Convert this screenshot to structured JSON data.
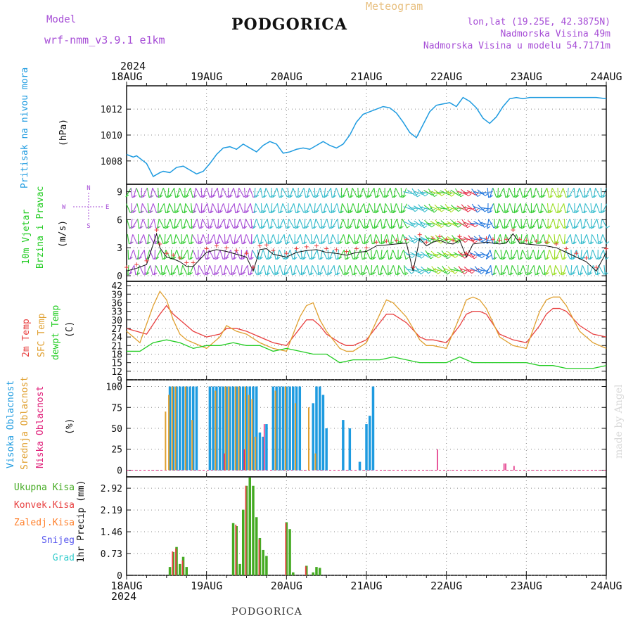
{
  "header": {
    "model_label": "Model",
    "model_name": "wrf-nmm_v3.9.1 e1km",
    "title": "PODGORICA",
    "meteogram": "Meteogram",
    "coords": "lon,lat (19.25E, 42.3875N)",
    "elev": "Nadmorska Visina 49m",
    "elev_model": "Nadmorska Visina u modelu 54.7171m",
    "year_top": "2024",
    "year_bottom": "2024",
    "footer_title": "PODGORICA",
    "credit": "made by Angel"
  },
  "colors": {
    "pressure": "#1e9be0",
    "wind_green": "#33cc33",
    "temp_2m": "#e84040",
    "temp_sfc": "#e0a030",
    "dewpt": "#22cc22",
    "cloud_high": "#1e9be0",
    "cloud_mid": "#e0a030",
    "cloud_low": "#e0207a",
    "precip_total": "#44aa22",
    "precip_conv": "#e84040",
    "precip_strat": "#ff7f2a",
    "snow": "#5555ee",
    "graupel": "#33cccc",
    "wind_dir_purple": "#a64dd6"
  },
  "axes": {
    "date_ticks": [
      "18AUG",
      "19AUG",
      "20AUG",
      "21AUG",
      "22AUG",
      "23AUG",
      "24AUG"
    ],
    "hours_span": 144
  },
  "panels": {
    "pressure": {
      "labels": [
        "Pritisak na nivou mora"
      ],
      "unit": "(hPa)",
      "yticks": [
        "1008",
        "1010",
        "1012"
      ]
    },
    "wind": {
      "labels": [
        "10m Vjetar",
        "Brzina i Pravac"
      ],
      "unit": "(m/s)",
      "yticks": [
        "0",
        "3",
        "6",
        "9"
      ],
      "compass": {
        "n": "N",
        "w": "W",
        "e": "E",
        "s": "S"
      }
    },
    "temp": {
      "labels": [
        "2m Temp",
        "SFC Temp",
        "dewpt Temp"
      ],
      "unit": "(C)",
      "yticks": [
        "9",
        "12",
        "15",
        "18",
        "21",
        "24",
        "27",
        "30",
        "33",
        "36",
        "39",
        "42"
      ]
    },
    "cloud": {
      "labels": [
        "Visoka Oblacnost",
        "Srednja Oblacnost",
        "Niska Oblacnost"
      ],
      "unit": "(%)",
      "yticks": [
        "0",
        "25",
        "50",
        "75",
        "100"
      ]
    },
    "precip": {
      "legend": [
        "Ukupna Kisa",
        "Konvek.Kisa",
        "Zaledj.Kisa",
        "Snijeg",
        "Grad"
      ],
      "unit": "1hr Precip (mm)",
      "yticks": [
        "0",
        "0.73",
        "1.46",
        "2.19",
        "2.92"
      ]
    }
  },
  "chart_data": [
    {
      "type": "line",
      "name": "pressure",
      "x_unit": "hours since 18AUG 00UTC",
      "ylim": [
        1006.2,
        1013.8
      ],
      "series": [
        {
          "name": "Pritisak na nivou mora",
          "x": [
            0,
            2,
            3,
            5,
            6,
            8,
            10,
            11,
            13,
            15,
            17,
            19,
            21,
            23,
            25,
            27,
            29,
            31,
            33,
            35,
            37,
            39,
            41,
            43,
            45,
            47,
            49,
            51,
            53,
            55,
            57,
            59,
            61,
            63,
            65,
            67,
            69,
            71,
            73,
            75,
            77,
            79,
            81,
            83,
            85,
            87,
            89,
            91,
            93,
            95,
            97,
            99,
            101,
            103,
            105,
            107,
            109,
            111,
            113,
            115,
            117,
            119,
            121,
            123,
            125,
            127,
            129,
            131,
            133,
            135,
            137,
            139,
            141,
            144
          ],
          "values": [
            1008.5,
            1008.3,
            1008.4,
            1008.0,
            1007.8,
            1006.8,
            1007.1,
            1007.2,
            1007.1,
            1007.5,
            1007.6,
            1007.3,
            1007.0,
            1007.2,
            1007.8,
            1008.5,
            1009.0,
            1009.1,
            1008.9,
            1009.3,
            1009.0,
            1008.7,
            1009.2,
            1009.5,
            1009.3,
            1008.6,
            1008.7,
            1008.9,
            1009.0,
            1008.9,
            1009.2,
            1009.5,
            1009.2,
            1009.0,
            1009.3,
            1010.0,
            1011.0,
            1011.6,
            1011.8,
            1012.0,
            1012.2,
            1012.1,
            1011.7,
            1011.0,
            1010.2,
            1009.8,
            1010.8,
            1011.8,
            1012.3,
            1012.4,
            1012.5,
            1012.2,
            1012.9,
            1012.6,
            1012.1,
            1011.3,
            1010.9,
            1011.4,
            1012.2,
            1012.8,
            1012.9,
            1012.8,
            1012.9,
            1012.9,
            1012.9,
            1012.9,
            1012.9,
            1012.9,
            1012.9,
            1012.9,
            1012.9,
            1012.9,
            1012.9,
            1012.8
          ]
        }
      ]
    },
    {
      "type": "line",
      "name": "wind",
      "x_unit": "hours since 18AUG 00UTC",
      "ylim": [
        -0.6,
        9.8
      ],
      "series": [
        {
          "name": "wind speed",
          "x": [
            0,
            3,
            6,
            9,
            10,
            12,
            14,
            16,
            18,
            20,
            24,
            27,
            30,
            33,
            36,
            38,
            40,
            42,
            44,
            48,
            51,
            54,
            57,
            60,
            63,
            66,
            69,
            72,
            75,
            78,
            81,
            84,
            86,
            88,
            90,
            92,
            94,
            96,
            98,
            100,
            102,
            104,
            106,
            108,
            110,
            112,
            114,
            116,
            118,
            120,
            123,
            126,
            129,
            132,
            135,
            138,
            141,
            144
          ],
          "values": [
            0.5,
            0.8,
            1.2,
            4.5,
            3.0,
            2.0,
            1.8,
            1.5,
            1.0,
            1.0,
            2.5,
            2.8,
            2.6,
            2.3,
            2.0,
            0.5,
            2.8,
            2.9,
            2.3,
            2.0,
            2.5,
            2.7,
            2.8,
            2.5,
            2.4,
            2.2,
            2.5,
            2.6,
            3.2,
            3.3,
            3.4,
            3.5,
            0.5,
            4.0,
            3.2,
            3.6,
            3.8,
            3.5,
            3.4,
            3.8,
            2.0,
            3.4,
            3.5,
            3.6,
            3.5,
            3.4,
            3.5,
            4.5,
            3.5,
            3.4,
            3.3,
            3.2,
            3.0,
            2.5,
            2.0,
            1.5,
            0.5,
            2.5
          ]
        }
      ]
    },
    {
      "type": "line",
      "name": "temperature",
      "x_unit": "hours since 18AUG 00UTC",
      "ylim": [
        9,
        43.5
      ],
      "series": [
        {
          "name": "2m Temp",
          "x": [
            0,
            6,
            10,
            12,
            14,
            16,
            18,
            20,
            24,
            28,
            30,
            33,
            36,
            40,
            44,
            48,
            52,
            54,
            56,
            58,
            60,
            64,
            66,
            68,
            72,
            76,
            78,
            80,
            84,
            88,
            90,
            92,
            96,
            100,
            102,
            104,
            106,
            108,
            112,
            116,
            120,
            124,
            126,
            128,
            130,
            132,
            136,
            140,
            144
          ],
          "values": [
            27,
            25,
            32,
            35,
            32,
            30,
            28,
            26,
            24,
            25,
            27,
            27,
            26,
            24,
            22,
            21,
            27,
            30,
            30,
            28,
            25,
            22,
            21,
            21,
            23,
            29,
            32,
            32,
            29,
            24,
            23,
            23,
            22,
            28,
            32,
            33,
            33,
            32,
            25,
            23,
            22,
            28,
            32,
            34,
            34,
            33,
            28,
            25,
            24
          ]
        },
        {
          "name": "SFC Temp",
          "x": [
            0,
            4,
            8,
            10,
            12,
            14,
            16,
            18,
            20,
            24,
            28,
            30,
            33,
            36,
            40,
            44,
            48,
            52,
            54,
            56,
            58,
            60,
            64,
            66,
            68,
            72,
            76,
            78,
            80,
            84,
            88,
            90,
            92,
            96,
            100,
            102,
            104,
            106,
            108,
            112,
            116,
            120,
            124,
            126,
            128,
            130,
            132,
            136,
            140,
            144
          ],
          "values": [
            26,
            22,
            35,
            40,
            37,
            30,
            25,
            23,
            22,
            20,
            24,
            28,
            26,
            25,
            22,
            20,
            19,
            31,
            35,
            36,
            30,
            26,
            20,
            19,
            19,
            22,
            32,
            37,
            36,
            31,
            23,
            21,
            21,
            20,
            31,
            37,
            38,
            37,
            34,
            24,
            21,
            20,
            33,
            37,
            38,
            38,
            35,
            26,
            22,
            20
          ]
        },
        {
          "name": "dewpt Temp",
          "x": [
            0,
            4,
            8,
            12,
            16,
            20,
            24,
            28,
            32,
            36,
            40,
            44,
            48,
            52,
            56,
            60,
            64,
            68,
            72,
            76,
            80,
            84,
            88,
            92,
            96,
            100,
            104,
            108,
            112,
            116,
            120,
            124,
            128,
            132,
            136,
            140,
            144
          ],
          "values": [
            19,
            19,
            22,
            23,
            22,
            20,
            21,
            21,
            22,
            21,
            21,
            19,
            20,
            19,
            18,
            18,
            15,
            16,
            16,
            16,
            17,
            16,
            15,
            15,
            15,
            17,
            15,
            15,
            15,
            15,
            15,
            14,
            14,
            13,
            13,
            13,
            14
          ]
        }
      ]
    },
    {
      "type": "bar",
      "name": "cloud",
      "x_unit": "hours since 18AUG 00UTC",
      "ylim": [
        -8,
        108
      ],
      "series": [
        {
          "name": "Visoka Oblacnost",
          "x": [
            13,
            14,
            15,
            16,
            17,
            18,
            19,
            20,
            21,
            25,
            26,
            27,
            28,
            29,
            30,
            31,
            32,
            33,
            34,
            35,
            36,
            37,
            38,
            39,
            40,
            41,
            42,
            44,
            45,
            46,
            47,
            48,
            49,
            50,
            51,
            52,
            56,
            57,
            58,
            59,
            60,
            65,
            67,
            70,
            72,
            73,
            74
          ],
          "values": [
            100,
            100,
            100,
            100,
            100,
            100,
            100,
            100,
            100,
            100,
            100,
            100,
            100,
            100,
            100,
            100,
            100,
            100,
            100,
            100,
            100,
            100,
            100,
            100,
            45,
            40,
            55,
            100,
            100,
            100,
            100,
            100,
            100,
            100,
            100,
            100,
            80,
            100,
            100,
            90,
            50,
            60,
            50,
            10,
            55,
            65,
            100
          ]
        },
        {
          "name": "Srednja Oblacnost",
          "x": [
            12,
            13,
            14,
            15,
            18,
            20,
            27,
            30,
            31,
            33,
            34,
            36,
            37,
            38,
            39,
            45,
            48,
            51,
            55,
            57
          ],
          "values": [
            70,
            90,
            100,
            100,
            100,
            60,
            95,
            100,
            100,
            100,
            100,
            100,
            90,
            85,
            40,
            95,
            100,
            80,
            75,
            20
          ]
        },
        {
          "name": "Niska Oblacnost",
          "x": [
            29,
            35,
            41,
            93,
            113,
            113.5,
            116
          ],
          "values": [
            20,
            25,
            55,
            25,
            8,
            8,
            5
          ]
        }
      ]
    },
    {
      "type": "bar",
      "name": "precip",
      "x_unit": "hours since 18AUG 00UTC",
      "ylim": [
        0,
        3.3
      ],
      "series": [
        {
          "name": "Ukupna Kisa",
          "x": [
            13,
            14,
            15,
            16,
            17,
            18,
            32,
            33,
            34,
            35,
            36,
            37,
            38,
            39,
            40,
            41,
            42,
            48,
            49,
            50,
            54,
            56,
            57,
            58
          ],
          "values": [
            0.28,
            0.78,
            0.95,
            0.38,
            0.62,
            0.28,
            1.75,
            1.65,
            0.38,
            2.2,
            3.0,
            3.28,
            3.0,
            1.95,
            1.25,
            0.85,
            0.65,
            1.78,
            1.55,
            0.1,
            0.32,
            0.1,
            0.28,
            0.25
          ]
        },
        {
          "name": "Konvek.Kisa",
          "x": [
            14,
            15,
            17,
            33,
            36,
            40,
            48,
            54
          ],
          "values": [
            0.8,
            0.9,
            0.5,
            1.7,
            3.0,
            1.2,
            1.75,
            0.3
          ]
        }
      ]
    }
  ]
}
